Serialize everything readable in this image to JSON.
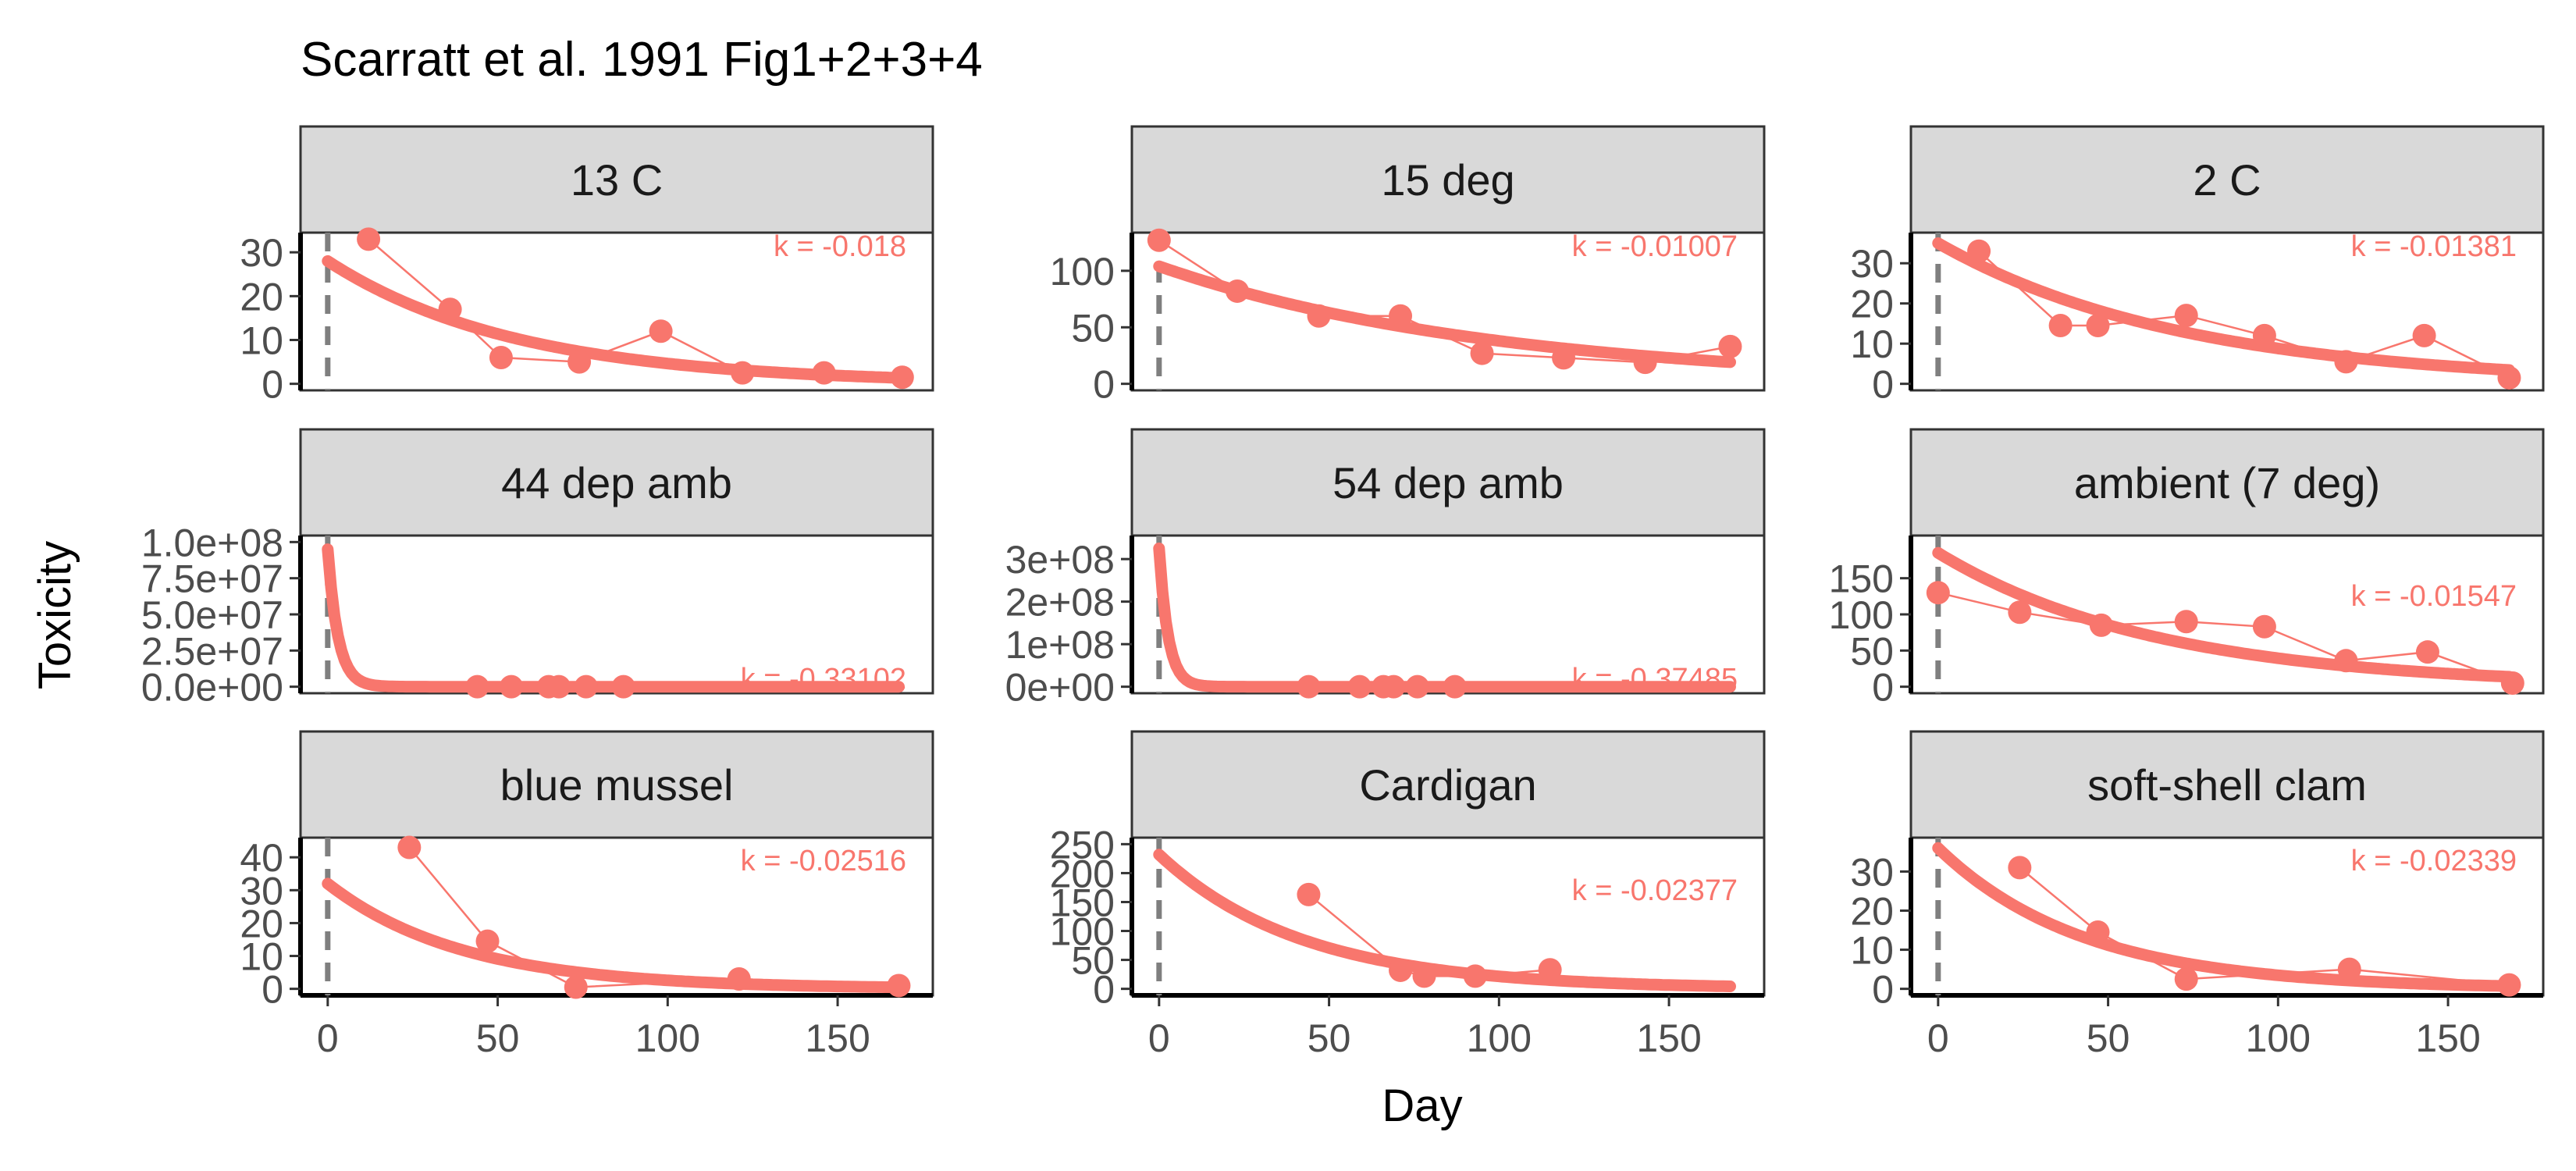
{
  "title": "Scarratt et al. 1991 Fig1+2+3+4",
  "xlabel": "Day",
  "ylabel": "Toxicity",
  "colors": {
    "series": "#F8766D",
    "strip_fill": "#D9D9D9",
    "vline": "#7F7F7F",
    "tick_text": "#4D4D4D"
  },
  "chart_data": {
    "type": "scatter",
    "facet_layout": "3x3 grid, shared x axis, free y axis",
    "xlim": [
      -8,
      178
    ],
    "xticks": [
      0,
      50,
      100,
      150
    ],
    "reference_line_x": 0,
    "panels": [
      {
        "name": "13 C",
        "k_label": "k = -0.018",
        "ylim": [
          0,
          33
        ],
        "yticks": [
          0,
          10,
          20,
          30
        ],
        "ytick_labels": [
          "0",
          "10",
          "20",
          "30"
        ],
        "x": [
          12,
          36,
          51,
          74,
          98,
          122,
          146,
          169
        ],
        "y": [
          33,
          17,
          6,
          5,
          12,
          2.5,
          2.5,
          1.5
        ],
        "fit": {
          "y0": 28,
          "k": -0.018
        }
      },
      {
        "name": "15 deg",
        "k_label": "k = -0.01007",
        "ylim": [
          0,
          128
        ],
        "yticks": [
          0,
          50,
          100
        ],
        "ytick_labels": [
          "0",
          "50",
          "100"
        ],
        "x": [
          0,
          23,
          47,
          71,
          95,
          119,
          143,
          168
        ],
        "y": [
          127,
          82,
          60,
          60,
          27,
          23,
          19,
          33
        ],
        "fit": {
          "y0": 104,
          "k": -0.01007
        }
      },
      {
        "name": "2 C",
        "k_label": "k = -0.01381",
        "ylim": [
          0,
          36
        ],
        "yticks": [
          0,
          10,
          20,
          30
        ],
        "ytick_labels": [
          "0",
          "10",
          "20",
          "30"
        ],
        "x": [
          12,
          36,
          47,
          73,
          96,
          120,
          143,
          168
        ],
        "y": [
          33,
          14.5,
          14.5,
          17,
          12,
          5.5,
          12,
          1.5
        ],
        "fit": {
          "y0": 35,
          "k": -0.01381
        }
      },
      {
        "name": "44 dep amb",
        "k_label": "k = -0.33102",
        "ylim": [
          0,
          100000000
        ],
        "yticks": [
          0,
          25000000,
          50000000,
          75000000,
          100000000
        ],
        "ytick_labels": [
          "0.0e+00",
          "2.5e+07",
          "5.0e+07",
          "7.5e+07",
          "1.0e+08"
        ],
        "x": [
          44,
          54,
          65,
          68,
          76,
          87
        ],
        "y": [
          200,
          180,
          150,
          140,
          120,
          100
        ],
        "fit": {
          "y0": 95000000,
          "k": -0.33102
        }
      },
      {
        "name": "54 dep amb",
        "k_label": "k = -0.37485",
        "ylim": [
          0,
          340000000
        ],
        "yticks": [
          0,
          100000000,
          200000000,
          300000000
        ],
        "ytick_labels": [
          "0e+00",
          "1e+08",
          "2e+08",
          "3e+08"
        ],
        "x": [
          44,
          59,
          66,
          69,
          76,
          87
        ],
        "y": [
          200,
          180,
          150,
          140,
          120,
          100
        ],
        "fit": {
          "y0": 325000000,
          "k": -0.37485
        }
      },
      {
        "name": "ambient (7 deg)",
        "k_label": "k = -0.01547",
        "ylim": [
          0,
          200
        ],
        "yticks": [
          0,
          50,
          100,
          150
        ],
        "ytick_labels": [
          "0",
          "50",
          "100",
          "150"
        ],
        "x": [
          0,
          24,
          48,
          73,
          96,
          120,
          144,
          169
        ],
        "y": [
          130,
          103,
          85,
          90,
          83,
          36,
          48,
          5
        ],
        "fit": {
          "y0": 185,
          "k": -0.01547
        }
      },
      {
        "name": "blue mussel",
        "k_label": "k = -0.02516",
        "ylim": [
          0,
          44
        ],
        "yticks": [
          0,
          10,
          20,
          30,
          40
        ],
        "ytick_labels": [
          "0",
          "10",
          "20",
          "30",
          "40"
        ],
        "x": [
          24,
          47,
          73,
          121,
          168
        ],
        "y": [
          43,
          14.5,
          0.5,
          3,
          1
        ],
        "fit": {
          "y0": 32,
          "k": -0.02516
        }
      },
      {
        "name": "Cardigan",
        "k_label": "k = -0.02377",
        "ylim": [
          0,
          250
        ],
        "yticks": [
          0,
          50,
          100,
          150,
          200,
          250
        ],
        "ytick_labels": [
          "0",
          "50",
          "100",
          "150",
          "200",
          "250"
        ],
        "x": [
          44,
          71,
          78,
          93,
          115
        ],
        "y": [
          163,
          32,
          22,
          22,
          33
        ],
        "fit": {
          "y0": 232,
          "k": -0.02377
        }
      },
      {
        "name": "soft-shell clam",
        "k_label": "k = -0.02339",
        "ylim": [
          0,
          37
        ],
        "yticks": [
          0,
          10,
          20,
          30
        ],
        "ytick_labels": [
          "0",
          "10",
          "20",
          "30"
        ],
        "x": [
          24,
          47,
          73,
          121,
          168
        ],
        "y": [
          31,
          14.5,
          2.5,
          5,
          1
        ],
        "fit": {
          "y0": 36,
          "k": -0.02339
        }
      }
    ]
  }
}
